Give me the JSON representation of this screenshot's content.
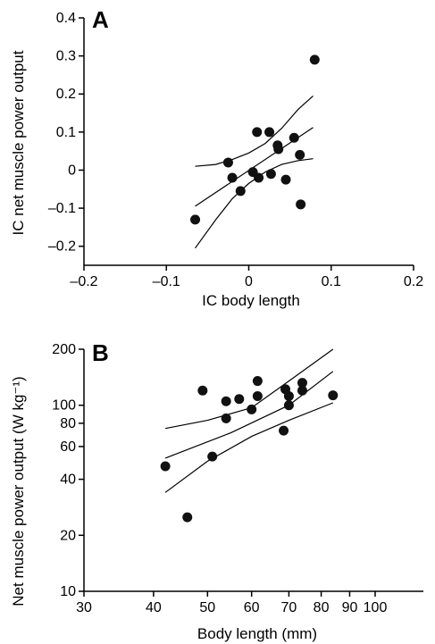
{
  "chart_data": [
    {
      "panel_label": "A",
      "type": "scatter",
      "xlabel": "IC body length",
      "ylabel": "IC net muscle power output",
      "xlim": [
        -0.2,
        0.2
      ],
      "ylim": [
        -0.25,
        0.4
      ],
      "x_ticks": [
        -0.2,
        -0.1,
        0,
        0.1,
        0.2
      ],
      "x_tick_labels": [
        "–0.2",
        "–0.1",
        "0",
        "0.1",
        "0.2"
      ],
      "y_ticks": [
        -0.2,
        -0.1,
        0,
        0.1,
        0.2,
        0.3,
        0.4
      ],
      "y_tick_labels": [
        "–0.2",
        "–0.1",
        "0",
        "0.1",
        "0.2",
        "0.3",
        "0.4"
      ],
      "points": [
        {
          "x": -0.065,
          "y": -0.13
        },
        {
          "x": -0.025,
          "y": 0.02
        },
        {
          "x": -0.02,
          "y": -0.02
        },
        {
          "x": -0.01,
          "y": -0.055
        },
        {
          "x": 0.005,
          "y": -0.005
        },
        {
          "x": 0.01,
          "y": 0.1
        },
        {
          "x": 0.012,
          "y": -0.02
        },
        {
          "x": 0.025,
          "y": 0.1
        },
        {
          "x": 0.027,
          "y": -0.01
        },
        {
          "x": 0.035,
          "y": 0.065
        },
        {
          "x": 0.036,
          "y": 0.055
        },
        {
          "x": 0.045,
          "y": -0.025
        },
        {
          "x": 0.055,
          "y": 0.085
        },
        {
          "x": 0.062,
          "y": 0.04
        },
        {
          "x": 0.063,
          "y": -0.09
        },
        {
          "x": 0.08,
          "y": 0.29
        }
      ],
      "regression_line": [
        [
          -0.065,
          -0.095
        ],
        [
          0.078,
          0.112
        ]
      ],
      "ci_upper": [
        [
          -0.065,
          0.01
        ],
        [
          -0.04,
          0.015
        ],
        [
          -0.02,
          0.028
        ],
        [
          0.0,
          0.045
        ],
        [
          0.02,
          0.07
        ],
        [
          0.04,
          0.11
        ],
        [
          0.06,
          0.16
        ],
        [
          0.078,
          0.195
        ]
      ],
      "ci_lower": [
        [
          -0.065,
          -0.205
        ],
        [
          -0.04,
          -0.13
        ],
        [
          -0.02,
          -0.075
        ],
        [
          0.0,
          -0.035
        ],
        [
          0.02,
          -0.005
        ],
        [
          0.04,
          0.015
        ],
        [
          0.06,
          0.025
        ],
        [
          0.078,
          0.03
        ]
      ]
    },
    {
      "panel_label": "B",
      "type": "scatter",
      "xscale": "log",
      "yscale": "log",
      "xlabel": "Body length (mm)",
      "ylabel": "Net muscle power output (W kg⁻¹)",
      "xlim": [
        30,
        100
      ],
      "ylim": [
        10,
        200
      ],
      "x_ticks": [
        30,
        40,
        50,
        60,
        70,
        80,
        90,
        100
      ],
      "x_tick_labels": [
        "30",
        "40",
        "50",
        "60",
        "70",
        "80",
        "90",
        "100"
      ],
      "y_ticks": [
        10,
        20,
        40,
        60,
        80,
        100,
        200
      ],
      "y_tick_labels": [
        "10",
        "20",
        "40",
        "60",
        "80",
        "100",
        "200"
      ],
      "points": [
        {
          "x": 42,
          "y": 47
        },
        {
          "x": 46,
          "y": 25
        },
        {
          "x": 49,
          "y": 120
        },
        {
          "x": 51,
          "y": 53
        },
        {
          "x": 54,
          "y": 85
        },
        {
          "x": 54,
          "y": 105
        },
        {
          "x": 57,
          "y": 108
        },
        {
          "x": 60,
          "y": 95
        },
        {
          "x": 61.5,
          "y": 112
        },
        {
          "x": 61.5,
          "y": 135
        },
        {
          "x": 68.5,
          "y": 73
        },
        {
          "x": 69,
          "y": 122
        },
        {
          "x": 70,
          "y": 112
        },
        {
          "x": 70,
          "y": 100
        },
        {
          "x": 74,
          "y": 132
        },
        {
          "x": 74,
          "y": 120
        },
        {
          "x": 84,
          "y": 113
        }
      ],
      "regression_line": [
        [
          42,
          52
        ],
        [
          55,
          71
        ],
        [
          70,
          100
        ],
        [
          84,
          152
        ]
      ],
      "ci_upper": [
        [
          42,
          75
        ],
        [
          50,
          83
        ],
        [
          60,
          97
        ],
        [
          70,
          135
        ],
        [
          84,
          200
        ]
      ],
      "ci_lower": [
        [
          42,
          34
        ],
        [
          50,
          50
        ],
        [
          60,
          68
        ],
        [
          70,
          83
        ],
        [
          84,
          103
        ]
      ]
    }
  ]
}
